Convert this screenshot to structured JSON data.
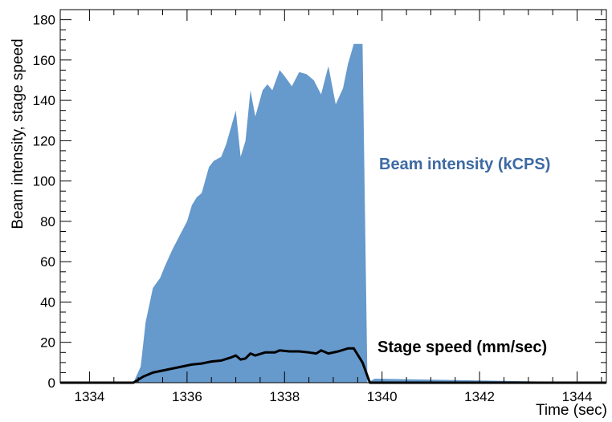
{
  "chart_data": {
    "type": "area",
    "title": "",
    "xlabel": "Time (sec)",
    "ylabel": "Beam intensity, stage speed",
    "xlim": [
      1333.4,
      1344.6
    ],
    "ylim": [
      0,
      185
    ],
    "x_ticks": [
      1334,
      1336,
      1338,
      1340,
      1342,
      1344
    ],
    "y_ticks": [
      0,
      20,
      40,
      60,
      80,
      100,
      120,
      140,
      160,
      180
    ],
    "grid": false,
    "colors": {
      "intensity_fill": "#6699cc",
      "intensity_label": "#3d6aa3",
      "speed_line": "#000000"
    },
    "series": [
      {
        "name": "Beam intensity (kCPS)",
        "kind": "area",
        "x": [
          1333.4,
          1334.9,
          1335.05,
          1335.15,
          1335.3,
          1335.45,
          1335.55,
          1335.7,
          1335.85,
          1336.0,
          1336.1,
          1336.2,
          1336.3,
          1336.45,
          1336.55,
          1336.7,
          1336.8,
          1337.0,
          1337.1,
          1337.2,
          1337.3,
          1337.4,
          1337.55,
          1337.65,
          1337.75,
          1337.9,
          1338.0,
          1338.15,
          1338.3,
          1338.45,
          1338.6,
          1338.75,
          1338.9,
          1339.05,
          1339.2,
          1339.3,
          1339.42,
          1339.6,
          1339.7,
          1339.85,
          1344.6
        ],
        "values": [
          0,
          0,
          8,
          30,
          47,
          52,
          58,
          66,
          73,
          80,
          88,
          92,
          94,
          107,
          110,
          112,
          118,
          135,
          112,
          120,
          145,
          132,
          145,
          148,
          145,
          155,
          152,
          147,
          154,
          153,
          150,
          143,
          157,
          138,
          146,
          158,
          168,
          168,
          0,
          2,
          0
        ]
      },
      {
        "name": "Stage speed (mm/sec)",
        "kind": "line",
        "x": [
          1333.4,
          1334.9,
          1335.1,
          1335.3,
          1335.5,
          1335.7,
          1335.9,
          1336.1,
          1336.3,
          1336.5,
          1336.7,
          1336.9,
          1337.0,
          1337.1,
          1337.2,
          1337.3,
          1337.4,
          1337.6,
          1337.8,
          1337.9,
          1338.1,
          1338.3,
          1338.5,
          1338.65,
          1338.75,
          1338.9,
          1339.1,
          1339.3,
          1339.42,
          1339.6,
          1339.75,
          1344.6
        ],
        "values": [
          0,
          0,
          3,
          5,
          6,
          7,
          8,
          9,
          9.5,
          10.5,
          11,
          12.5,
          13.5,
          11.5,
          12,
          14.5,
          13.5,
          15,
          15,
          16,
          15.5,
          15.5,
          15,
          14.5,
          16,
          14.5,
          15.5,
          17,
          17,
          10,
          0,
          0
        ]
      }
    ],
    "annotations": [
      {
        "text": "Beam intensity (kCPS)"
      },
      {
        "text": "Stage speed (mm/sec)"
      }
    ]
  }
}
